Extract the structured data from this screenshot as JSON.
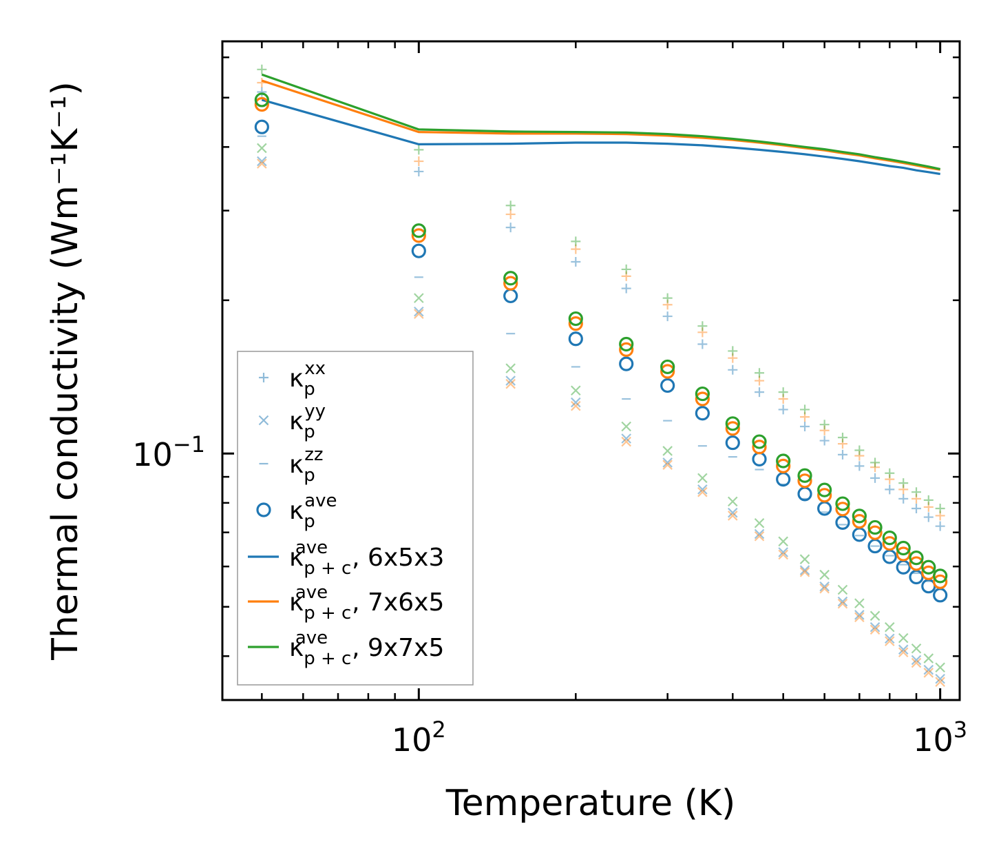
{
  "chart_data": {
    "type": "scatter",
    "xscale": "log",
    "yscale": "log",
    "xlim": [
      42,
      1090
    ],
    "ylim": [
      0.0328,
      0.645
    ],
    "xlabel": "Temperature (K)",
    "ylabel": "Thermal conductivity (Wm⁻¹K⁻¹)",
    "x_ticks": [
      {
        "value": 100,
        "base": "10",
        "exp": "2"
      },
      {
        "value": 1000,
        "base": "10",
        "exp": "3"
      }
    ],
    "y_ticks": [
      {
        "value": 0.1,
        "base": "10",
        "exp": "−1"
      }
    ],
    "x": [
      50,
      100,
      150,
      200,
      250,
      300,
      350,
      400,
      450,
      500,
      550,
      600,
      650,
      700,
      750,
      800,
      850,
      900,
      950,
      1000
    ],
    "legend": {
      "placement": "lower-left",
      "entries": [
        {
          "marker": "plus",
          "color": "#1f77b4",
          "symbol": "κ",
          "sub": "p",
          "sup": "xx",
          "tail": ""
        },
        {
          "marker": "x",
          "color": "#1f77b4",
          "symbol": "κ",
          "sub": "p",
          "sup": "yy",
          "tail": ""
        },
        {
          "marker": "dash",
          "color": "#1f77b4",
          "symbol": "κ",
          "sub": "p",
          "sup": "zz",
          "tail": ""
        },
        {
          "marker": "circle",
          "color": "#1f77b4",
          "symbol": "κ",
          "sub": "p",
          "sup": "ave",
          "tail": ""
        },
        {
          "marker": "line",
          "color": "#1f77b4",
          "symbol": "κ",
          "sub": "p + c",
          "sup": "ave",
          "tail": ", 6x5x3"
        },
        {
          "marker": "line",
          "color": "#ff7f0e",
          "symbol": "κ",
          "sub": "p + c",
          "sup": "ave",
          "tail": ", 7x6x5"
        },
        {
          "marker": "line",
          "color": "#2ca02c",
          "symbol": "κ",
          "sub": "p + c",
          "sup": "ave",
          "tail": ", 9x7x5"
        }
      ]
    },
    "series": [
      {
        "name": "κ_p^xx, 6x5x3",
        "marker": "plus",
        "color": "#1f77b4",
        "alpha": 0.45,
        "values": [
          0.513,
          0.358,
          0.278,
          0.238,
          0.211,
          0.186,
          0.164,
          0.146,
          0.132,
          0.122,
          0.113,
          0.106,
          0.0995,
          0.0945,
          0.0895,
          0.085,
          0.0815,
          0.078,
          0.075,
          0.072
        ]
      },
      {
        "name": "κ_p^xx, 7x6x5",
        "marker": "plus",
        "color": "#ff7f0e",
        "alpha": 0.45,
        "values": [
          0.535,
          0.375,
          0.295,
          0.252,
          0.223,
          0.196,
          0.173,
          0.154,
          0.139,
          0.128,
          0.118,
          0.111,
          0.1045,
          0.099,
          0.094,
          0.089,
          0.085,
          0.0815,
          0.0785,
          0.0755
        ]
      },
      {
        "name": "κ_p^xx, 9x7x5",
        "marker": "plus",
        "color": "#2ca02c",
        "alpha": 0.45,
        "values": [
          0.568,
          0.395,
          0.307,
          0.261,
          0.23,
          0.202,
          0.178,
          0.159,
          0.144,
          0.132,
          0.122,
          0.114,
          0.1075,
          0.1015,
          0.096,
          0.0915,
          0.0875,
          0.084,
          0.081,
          0.078
        ]
      },
      {
        "name": "κ_p^yy, 6x5x3",
        "marker": "x",
        "color": "#1f77b4",
        "alpha": 0.45,
        "values": [
          0.375,
          0.19,
          0.139,
          0.126,
          0.107,
          0.096,
          0.085,
          0.0765,
          0.0695,
          0.064,
          0.059,
          0.0548,
          0.0512,
          0.0482,
          0.0456,
          0.0433,
          0.0412,
          0.0393,
          0.0376,
          0.0361
        ]
      },
      {
        "name": "κ_p^yy, 7x6x5",
        "marker": "x",
        "color": "#ff7f0e",
        "alpha": 0.45,
        "values": [
          0.371,
          0.188,
          0.137,
          0.124,
          0.1055,
          0.095,
          0.084,
          0.0755,
          0.0688,
          0.0633,
          0.0585,
          0.0543,
          0.0507,
          0.0477,
          0.0451,
          0.0428,
          0.0407,
          0.0388,
          0.0371,
          0.0356
        ]
      },
      {
        "name": "κ_p^yy, 9x7x5",
        "marker": "x",
        "color": "#2ca02c",
        "alpha": 0.45,
        "values": [
          0.398,
          0.202,
          0.147,
          0.133,
          0.113,
          0.1012,
          0.0895,
          0.0805,
          0.073,
          0.0672,
          0.062,
          0.0578,
          0.054,
          0.0508,
          0.048,
          0.0456,
          0.0434,
          0.0414,
          0.0396,
          0.038
        ]
      },
      {
        "name": "κ_p^zz, 6x5x3",
        "marker": "dash",
        "color": "#1f77b4",
        "alpha": 0.45,
        "values": [
          0.42,
          0.222,
          0.172,
          0.148,
          0.128,
          0.116,
          0.1035,
          0.0985,
          0.093,
          0.087,
          0.0815,
          0.0767,
          0.0725,
          0.069,
          0.0658,
          0.063,
          0.0605,
          0.0582,
          0.0561,
          0.0541
        ]
      },
      {
        "name": "κ_p^ave, 6x5x3",
        "marker": "circle",
        "color": "#1f77b4",
        "alpha": 1,
        "values": [
          0.438,
          0.25,
          0.204,
          0.168,
          0.15,
          0.136,
          0.12,
          0.105,
          0.0975,
          0.089,
          0.0833,
          0.078,
          0.0732,
          0.0693,
          0.0658,
          0.0627,
          0.0598,
          0.0572,
          0.0549,
          0.0527
        ]
      },
      {
        "name": "κ_p^ave, 7x6x5",
        "marker": "circle",
        "color": "#ff7f0e",
        "alpha": 1,
        "values": [
          0.485,
          0.268,
          0.216,
          0.18,
          0.16,
          0.145,
          0.128,
          0.112,
          0.103,
          0.0945,
          0.0884,
          0.0828,
          0.0778,
          0.0736,
          0.0699,
          0.0666,
          0.0635,
          0.0608,
          0.0583,
          0.056
        ]
      },
      {
        "name": "κ_p^ave, 9x7x5",
        "marker": "circle",
        "color": "#2ca02c",
        "alpha": 1,
        "values": [
          0.495,
          0.274,
          0.221,
          0.184,
          0.164,
          0.148,
          0.131,
          0.1145,
          0.1055,
          0.0967,
          0.0905,
          0.0848,
          0.0797,
          0.0754,
          0.0716,
          0.0683,
          0.0652,
          0.0624,
          0.0598,
          0.0575
        ]
      },
      {
        "name": "κ_p+c^ave, 6x5x3",
        "marker": "line",
        "color": "#1f77b4",
        "alpha": 1,
        "values": [
          0.495,
          0.405,
          0.406,
          0.408,
          0.408,
          0.406,
          0.403,
          0.399,
          0.395,
          0.391,
          0.387,
          0.383,
          0.379,
          0.375,
          0.371,
          0.367,
          0.364,
          0.36,
          0.357,
          0.354
        ]
      },
      {
        "name": "κ_p+c^ave, 7x6x5",
        "marker": "line",
        "color": "#ff7f0e",
        "alpha": 1,
        "values": [
          0.54,
          0.428,
          0.425,
          0.425,
          0.424,
          0.421,
          0.417,
          0.413,
          0.408,
          0.403,
          0.398,
          0.394,
          0.389,
          0.385,
          0.38,
          0.376,
          0.372,
          0.368,
          0.364,
          0.361
        ]
      },
      {
        "name": "κ_p+c^ave, 9x7x5",
        "marker": "line",
        "color": "#2ca02c",
        "alpha": 1,
        "values": [
          0.555,
          0.433,
          0.429,
          0.428,
          0.427,
          0.424,
          0.42,
          0.415,
          0.41,
          0.405,
          0.4,
          0.396,
          0.391,
          0.387,
          0.382,
          0.378,
          0.374,
          0.37,
          0.366,
          0.362
        ]
      }
    ]
  }
}
